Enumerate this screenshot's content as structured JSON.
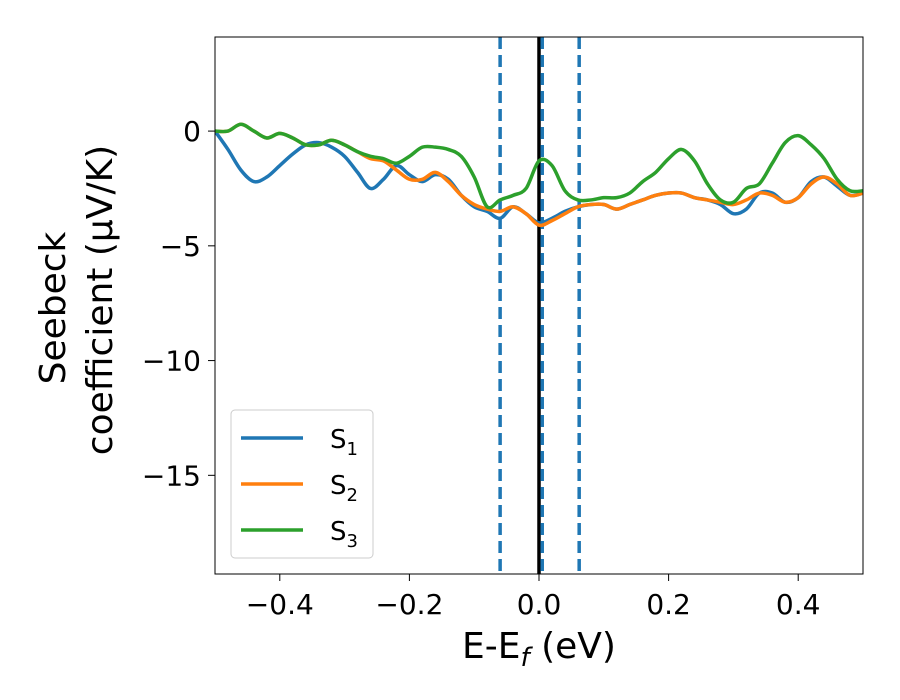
{
  "chart_data": {
    "type": "line",
    "xlabel": "E-E",
    "xlabel_sub": "f",
    "xlabel_unit": " (eV)",
    "ylabel_line1": "Seebeck",
    "ylabel_line2": "coefficient  (μV/K)",
    "xlim": [
      -0.5,
      0.5
    ],
    "ylim": [
      -19.3,
      4.1
    ],
    "x_ticks": [
      -0.4,
      -0.2,
      0.0,
      0.2,
      0.4
    ],
    "x_tick_labels": [
      "−0.4",
      "−0.2",
      "0.0",
      "0.2",
      "0.4"
    ],
    "y_ticks": [
      0,
      -5,
      -10,
      -15
    ],
    "y_tick_labels": [
      "0",
      "−5",
      "−10",
      "−15"
    ],
    "grid": false,
    "legend_position": "lower-left",
    "vlines": [
      {
        "x": -0.06,
        "style": "dashed",
        "color": "#1f77b4"
      },
      {
        "x": 0.0,
        "style": "solid",
        "color": "#000000"
      },
      {
        "x": 0.005,
        "style": "dashed",
        "color": "#1f77b4"
      },
      {
        "x": 0.062,
        "style": "dashed",
        "color": "#1f77b4"
      }
    ],
    "series": [
      {
        "name": "S",
        "sub": "1",
        "color": "#1f77b4",
        "points": [
          [
            -0.5,
            0.0
          ],
          [
            -0.48,
            -0.8
          ],
          [
            -0.46,
            -1.7
          ],
          [
            -0.44,
            -2.2
          ],
          [
            -0.42,
            -2.0
          ],
          [
            -0.4,
            -1.5
          ],
          [
            -0.38,
            -1.0
          ],
          [
            -0.36,
            -0.6
          ],
          [
            -0.34,
            -0.5
          ],
          [
            -0.32,
            -0.7
          ],
          [
            -0.3,
            -1.1
          ],
          [
            -0.28,
            -1.8
          ],
          [
            -0.26,
            -2.5
          ],
          [
            -0.24,
            -2.1
          ],
          [
            -0.22,
            -1.5
          ],
          [
            -0.2,
            -1.9
          ],
          [
            -0.18,
            -2.2
          ],
          [
            -0.16,
            -1.9
          ],
          [
            -0.14,
            -2.1
          ],
          [
            -0.12,
            -2.8
          ],
          [
            -0.1,
            -3.3
          ],
          [
            -0.08,
            -3.5
          ],
          [
            -0.06,
            -3.8
          ],
          [
            -0.04,
            -3.3
          ],
          [
            -0.02,
            -3.6
          ],
          [
            0.0,
            -4.0
          ],
          [
            0.02,
            -3.8
          ],
          [
            0.04,
            -3.5
          ],
          [
            0.06,
            -3.3
          ],
          [
            0.08,
            -3.2
          ],
          [
            0.1,
            -3.2
          ],
          [
            0.12,
            -3.4
          ],
          [
            0.14,
            -3.2
          ],
          [
            0.16,
            -3.0
          ],
          [
            0.18,
            -2.8
          ],
          [
            0.2,
            -2.7
          ],
          [
            0.22,
            -2.7
          ],
          [
            0.24,
            -2.9
          ],
          [
            0.26,
            -3.0
          ],
          [
            0.28,
            -3.2
          ],
          [
            0.3,
            -3.6
          ],
          [
            0.32,
            -3.4
          ],
          [
            0.34,
            -2.7
          ],
          [
            0.36,
            -2.7
          ],
          [
            0.38,
            -3.1
          ],
          [
            0.4,
            -2.9
          ],
          [
            0.42,
            -2.2
          ],
          [
            0.44,
            -2.0
          ],
          [
            0.46,
            -2.4
          ],
          [
            0.48,
            -2.8
          ],
          [
            0.5,
            -2.7
          ]
        ]
      },
      {
        "name": "S",
        "sub": "2",
        "color": "#ff7f0e",
        "points": [
          [
            -0.5,
            0.0
          ],
          [
            -0.48,
            0.0
          ],
          [
            -0.46,
            0.3
          ],
          [
            -0.44,
            0.0
          ],
          [
            -0.42,
            -0.3
          ],
          [
            -0.4,
            -0.1
          ],
          [
            -0.38,
            -0.3
          ],
          [
            -0.36,
            -0.6
          ],
          [
            -0.34,
            -0.6
          ],
          [
            -0.32,
            -0.4
          ],
          [
            -0.3,
            -0.6
          ],
          [
            -0.28,
            -0.9
          ],
          [
            -0.26,
            -1.2
          ],
          [
            -0.24,
            -1.3
          ],
          [
            -0.22,
            -1.7
          ],
          [
            -0.2,
            -2.1
          ],
          [
            -0.18,
            -2.1
          ],
          [
            -0.16,
            -1.8
          ],
          [
            -0.14,
            -2.2
          ],
          [
            -0.12,
            -2.8
          ],
          [
            -0.1,
            -3.2
          ],
          [
            -0.08,
            -3.4
          ],
          [
            -0.06,
            -3.5
          ],
          [
            -0.04,
            -3.3
          ],
          [
            -0.02,
            -3.6
          ],
          [
            0.0,
            -4.1
          ],
          [
            0.02,
            -3.9
          ],
          [
            0.04,
            -3.6
          ],
          [
            0.06,
            -3.3
          ],
          [
            0.08,
            -3.2
          ],
          [
            0.1,
            -3.2
          ],
          [
            0.12,
            -3.4
          ],
          [
            0.14,
            -3.2
          ],
          [
            0.16,
            -3.0
          ],
          [
            0.18,
            -2.8
          ],
          [
            0.2,
            -2.7
          ],
          [
            0.22,
            -2.7
          ],
          [
            0.24,
            -2.9
          ],
          [
            0.26,
            -3.0
          ],
          [
            0.28,
            -3.1
          ],
          [
            0.3,
            -3.2
          ],
          [
            0.32,
            -3.0
          ],
          [
            0.34,
            -2.7
          ],
          [
            0.36,
            -2.8
          ],
          [
            0.38,
            -3.1
          ],
          [
            0.4,
            -2.9
          ],
          [
            0.42,
            -2.3
          ],
          [
            0.44,
            -2.0
          ],
          [
            0.46,
            -2.3
          ],
          [
            0.48,
            -2.8
          ],
          [
            0.5,
            -2.7
          ]
        ]
      },
      {
        "name": "S",
        "sub": "3",
        "color": "#2ca02c",
        "points": [
          [
            -0.5,
            0.0
          ],
          [
            -0.48,
            0.0
          ],
          [
            -0.46,
            0.3
          ],
          [
            -0.44,
            0.0
          ],
          [
            -0.42,
            -0.3
          ],
          [
            -0.4,
            -0.1
          ],
          [
            -0.38,
            -0.3
          ],
          [
            -0.36,
            -0.6
          ],
          [
            -0.34,
            -0.6
          ],
          [
            -0.32,
            -0.4
          ],
          [
            -0.3,
            -0.6
          ],
          [
            -0.28,
            -0.9
          ],
          [
            -0.26,
            -1.1
          ],
          [
            -0.24,
            -1.2
          ],
          [
            -0.22,
            -1.4
          ],
          [
            -0.2,
            -1.1
          ],
          [
            -0.18,
            -0.7
          ],
          [
            -0.16,
            -0.7
          ],
          [
            -0.14,
            -0.8
          ],
          [
            -0.12,
            -1.1
          ],
          [
            -0.1,
            -2.0
          ],
          [
            -0.08,
            -3.3
          ],
          [
            -0.06,
            -3.0
          ],
          [
            -0.04,
            -2.8
          ],
          [
            -0.02,
            -2.5
          ],
          [
            0.0,
            -1.3
          ],
          [
            0.02,
            -1.5
          ],
          [
            0.04,
            -2.6
          ],
          [
            0.06,
            -3.0
          ],
          [
            0.08,
            -3.0
          ],
          [
            0.1,
            -2.9
          ],
          [
            0.12,
            -2.9
          ],
          [
            0.14,
            -2.7
          ],
          [
            0.16,
            -2.2
          ],
          [
            0.18,
            -1.8
          ],
          [
            0.2,
            -1.2
          ],
          [
            0.22,
            -0.8
          ],
          [
            0.24,
            -1.3
          ],
          [
            0.26,
            -2.3
          ],
          [
            0.28,
            -3.0
          ],
          [
            0.3,
            -3.1
          ],
          [
            0.32,
            -2.5
          ],
          [
            0.34,
            -2.3
          ],
          [
            0.36,
            -1.4
          ],
          [
            0.38,
            -0.5
          ],
          [
            0.4,
            -0.2
          ],
          [
            0.42,
            -0.6
          ],
          [
            0.44,
            -1.2
          ],
          [
            0.46,
            -2.1
          ],
          [
            0.48,
            -2.6
          ],
          [
            0.5,
            -2.6
          ]
        ]
      }
    ]
  }
}
